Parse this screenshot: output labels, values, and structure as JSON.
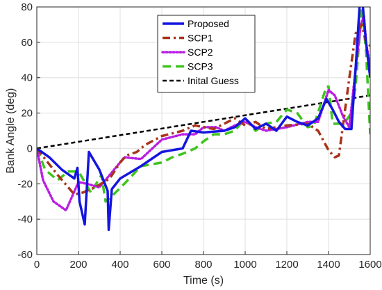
{
  "chart_data": {
    "type": "line",
    "xlabel": "Time (s)",
    "ylabel": "Bank Angle (deg)",
    "xlim": [
      0,
      1600
    ],
    "ylim": [
      -60,
      80
    ],
    "xticks": [
      0,
      200,
      400,
      600,
      800,
      1000,
      1200,
      1400,
      1600
    ],
    "yticks": [
      -60,
      -40,
      -20,
      0,
      20,
      40,
      60,
      80
    ],
    "grid": true,
    "legend_position": "top-center",
    "series": [
      {
        "name": "Proposed",
        "color": "#1515e0",
        "style": "solid",
        "x": [
          0,
          60,
          120,
          180,
          195,
          205,
          230,
          250,
          300,
          340,
          345,
          360,
          400,
          500,
          600,
          700,
          740,
          800,
          900,
          950,
          1000,
          1050,
          1100,
          1150,
          1200,
          1250,
          1300,
          1350,
          1390,
          1420,
          1450,
          1480,
          1510,
          1530,
          1550,
          1565,
          1580,
          1600
        ],
        "y": [
          0,
          -5,
          -12,
          -17,
          -11,
          -30,
          -43,
          -2,
          -12,
          -24,
          -46,
          -23,
          -17,
          -10,
          -2,
          0,
          10,
          9,
          10,
          12,
          17,
          11,
          14,
          10,
          18,
          15,
          13,
          17,
          28,
          22,
          15,
          11,
          11,
          45,
          82,
          80,
          60,
          40
        ]
      },
      {
        "name": "SCP1",
        "color": "#a8341a",
        "style": "dashdot",
        "x": [
          0,
          100,
          180,
          220,
          280,
          350,
          400,
          430,
          480,
          520,
          600,
          700,
          760,
          800,
          850,
          900,
          950,
          1000,
          1050,
          1100,
          1200,
          1300,
          1350,
          1400,
          1430,
          1450,
          1500,
          1530,
          1560,
          1580,
          1600
        ],
        "y": [
          0,
          -15,
          -26,
          -25,
          -22,
          -17,
          -8,
          -4,
          -2,
          2,
          7,
          10,
          13,
          12,
          11,
          14,
          17,
          13,
          15,
          11,
          13,
          14,
          10,
          -1,
          -5,
          -4,
          40,
          65,
          70,
          60,
          58
        ]
      },
      {
        "name": "SCP2",
        "color": "#b91ee3",
        "style": "dotted",
        "x": [
          0,
          30,
          80,
          140,
          200,
          240,
          300,
          350,
          420,
          500,
          600,
          700,
          760,
          800,
          860,
          900,
          950,
          1000,
          1050,
          1100,
          1200,
          1300,
          1350,
          1400,
          1430,
          1470,
          1500,
          1530,
          1555,
          1570,
          1580,
          1600
        ],
        "y": [
          0,
          -18,
          -30,
          -35,
          -19,
          -20,
          -22,
          -15,
          -5,
          -6,
          5,
          8,
          8,
          12,
          12,
          10,
          13,
          15,
          12,
          10,
          12,
          15,
          15,
          33,
          30,
          18,
          12,
          45,
          70,
          75,
          60,
          46
        ]
      },
      {
        "name": "SCP3",
        "color": "#3ec41c",
        "style": "dashed",
        "x": [
          0,
          40,
          100,
          150,
          200,
          260,
          310,
          330,
          360,
          420,
          500,
          600,
          650,
          700,
          760,
          800,
          850,
          900,
          950,
          1000,
          1050,
          1100,
          1150,
          1200,
          1250,
          1300,
          1330,
          1360,
          1390,
          1400,
          1420,
          1450,
          1480,
          1510,
          1530,
          1560,
          1580,
          1600
        ],
        "y": [
          0,
          -12,
          -18,
          -13,
          -13,
          -25,
          -15,
          -30,
          -27,
          -20,
          -10,
          -8,
          -5,
          -3,
          0,
          4,
          8,
          8,
          10,
          17,
          10,
          14,
          15,
          22,
          20,
          12,
          13,
          24,
          35,
          35,
          14,
          14,
          15,
          20,
          35,
          80,
          55,
          8
        ]
      },
      {
        "name": "Inital Guess",
        "color": "#000000",
        "style": "dashed-thin",
        "x": [
          0,
          1600
        ],
        "y": [
          0,
          30
        ]
      }
    ]
  }
}
